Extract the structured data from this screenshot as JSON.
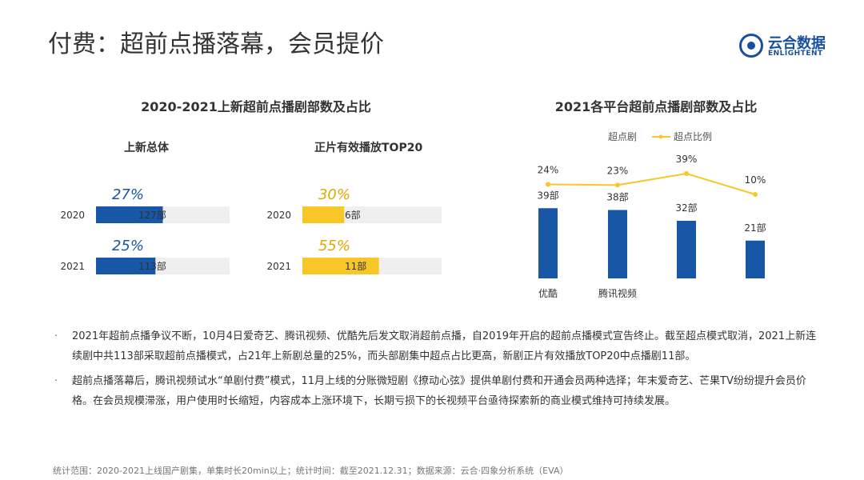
{
  "header": {
    "title": "付费：超前点播落幕，会员提价",
    "logo_cn": "云合数据",
    "logo_en": "ENLIGHTENT"
  },
  "left_panel": {
    "title": "2020-2021上新超前点播剧部数及占比"
  },
  "right_panel": {
    "title": "2021各平台超前点播剧部数及占比"
  },
  "chart_data": [
    {
      "type": "bar",
      "orientation": "horizontal",
      "title": "上新总体",
      "categories": [
        "2020",
        "2021"
      ],
      "values": [
        127,
        113
      ],
      "value_labels": [
        "127部",
        "113部"
      ],
      "shares": [
        27,
        25
      ],
      "share_labels": [
        "27%",
        "25%"
      ],
      "color": "#1857a6"
    },
    {
      "type": "bar",
      "orientation": "horizontal",
      "title": "正片有效播放TOP20",
      "categories": [
        "2020",
        "2021"
      ],
      "values": [
        6,
        11
      ],
      "value_labels": [
        "6部",
        "11部"
      ],
      "shares": [
        30,
        55
      ],
      "share_labels": [
        "30%",
        "55%"
      ],
      "color": "#f7c728"
    },
    {
      "type": "bar+line",
      "categories": [
        "优酷",
        "腾讯视频",
        "",
        ""
      ],
      "series": [
        {
          "name": "超点剧",
          "type": "bar",
          "values": [
            39,
            38,
            32,
            21
          ],
          "value_labels": [
            "39部",
            "38部",
            "32部",
            "21部"
          ],
          "color": "#1857a6"
        },
        {
          "name": "超点比例",
          "type": "line",
          "values": [
            24,
            23,
            39,
            10
          ],
          "value_labels": [
            "24%",
            "23%",
            "39%",
            "10%"
          ],
          "color": "#f7c728"
        }
      ],
      "legend_position": "top"
    }
  ],
  "bullets": [
    "2021年超前点播争议不断，10月4日爱奇艺、腾讯视频、优酷先后发文取消超前点播，自2019年开启的超前点播模式宣告终止。截至超点模式取消，2021上新连续剧中共113部采取超前点播模式，占21年上新剧总量的25%，而头部剧集中超点占比更高，新剧正片有效播放TOP20中点播剧11部。",
    "超前点播落幕后，腾讯视频试水“单剧付费”模式，11月上线的分账微短剧《撩动心弦》提供单剧付费和开通会员两种选择；年末爱奇艺、芒果TV纷纷提升会员价格。在会员规模滞涨，用户使用时长缩短，内容成本上涨环境下，长期亏损下的长视频平台亟待探索新的商业模式维持可持续发展。"
  ],
  "bullet_marker": "·",
  "footer": "统计范围：2020-2021上线国产剧集，单集时长20min以上；统计时间：截至2021.12.31；数据来源：云合·四象分析系统（EVA）"
}
